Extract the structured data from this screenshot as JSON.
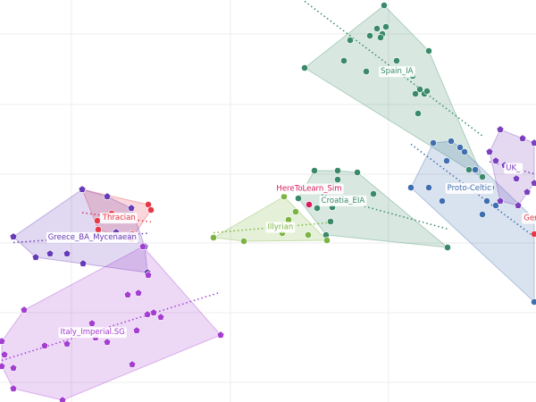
{
  "chart_data": {
    "type": "scatter",
    "xlim": [
      0,
      600
    ],
    "ylim": [
      450,
      0
    ],
    "xticks": [
      80,
      258,
      435
    ],
    "yticks": [
      38,
      117,
      195,
      272,
      350,
      428
    ],
    "grid": true,
    "tick_labels": false,
    "hulls": true,
    "trend_lines": true,
    "series": [
      {
        "name": "Spain_IA",
        "color": "#3a8a6a",
        "marker": "circle",
        "x": [
          430,
          341,
          480,
          385,
          392,
          422,
          428,
          432,
          426,
          444,
          414,
          410,
          462,
          470,
          475,
          468,
          478,
          465,
          540,
          525
        ],
        "y": [
          6,
          76,
          57,
          68,
          45,
          32,
          38,
          30,
          42,
          68,
          40,
          80,
          85,
          100,
          105,
          127,
          102,
          105,
          198,
          190
        ]
      },
      {
        "name": "Croatia_EIA",
        "color": "#3a8a6a",
        "marker": "circle",
        "x": [
          352,
          378,
          400,
          418,
          501,
          370,
          372,
          355,
          334,
          365,
          378
        ],
        "y": [
          191,
          191,
          193,
          217,
          277,
          248,
          232,
          233,
          222,
          263,
          201
        ]
      },
      {
        "name": "Illyrian",
        "color": "#7cb342",
        "marker": "circle",
        "x": [
          239,
          318,
          323,
          273,
          366,
          345,
          316,
          331
        ],
        "y": [
          266,
          220,
          246,
          270,
          269,
          263,
          261,
          237
        ]
      },
      {
        "name": "HereToLearn_Sim",
        "color": "#d81b60",
        "marker": "circle",
        "x": [
          346
        ],
        "y": [
          229
        ]
      },
      {
        "name": "Thracian",
        "color": "#e53946",
        "marker": "circle",
        "x": [
          92,
          166,
          169,
          148,
          147,
          109,
          125,
          110
        ],
        "y": [
          212,
          229,
          235,
          262,
          268,
          247,
          239,
          257
        ]
      },
      {
        "name": "Greece_BA_Mycenaean",
        "color": "#673ab7",
        "marker": "pentagon",
        "x": [
          15,
          92,
          120,
          147,
          165,
          162,
          40,
          56,
          75,
          93,
          130,
          145
        ],
        "y": [
          265,
          212,
          220,
          233,
          305,
          276,
          288,
          284,
          284,
          295,
          260,
          263
        ]
      },
      {
        "name": "Italy_Imperial.SG",
        "color": "#a33ed1",
        "marker": "pentagon",
        "x": [
          160,
          247,
          2,
          27,
          15,
          2,
          15,
          75,
          50,
          107,
          120,
          103,
          143,
          155,
          172,
          165,
          180,
          153,
          148,
          70,
          5,
          166
        ],
        "y": [
          276,
          375,
          382,
          347,
          435,
          410,
          412,
          385,
          387,
          378,
          383,
          362,
          330,
          328,
          350,
          352,
          355,
          370,
          408,
          448,
          397,
          308
        ]
      },
      {
        "name": "Proto-Celtic",
        "color": "#3f6fb0",
        "marker": "circle",
        "x": [
          460,
          485,
          505,
          515,
          532,
          540,
          555,
          550,
          480,
          495,
          545,
          598,
          500,
          520,
          598
        ],
        "y": [
          210,
          160,
          158,
          165,
          190,
          240,
          230,
          210,
          210,
          225,
          225,
          245,
          180,
          170,
          338
        ]
      },
      {
        "name": "UK_",
        "color": "#7b3fbf",
        "marker": "pentagon",
        "x": [
          548,
          560,
          585,
          598,
          555,
          565,
          578,
          590,
          560,
          580,
          598
        ],
        "y": [
          170,
          145,
          155,
          160,
          180,
          185,
          200,
          215,
          225,
          230,
          205
        ]
      },
      {
        "name": "Germ",
        "color": "#e53946",
        "marker": "circle",
        "x": [
          598
        ],
        "y": [
          262
        ]
      }
    ]
  }
}
